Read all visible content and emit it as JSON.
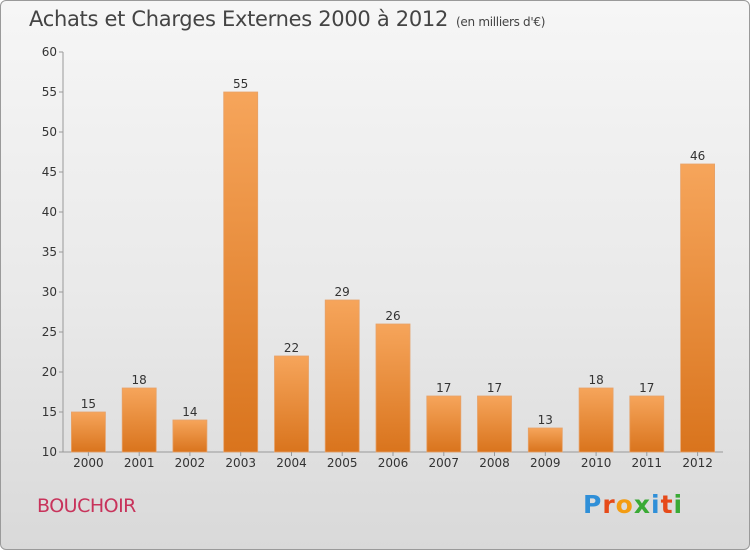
{
  "header": {
    "title": "Achats et Charges Externes 2000 à 2012",
    "subtitle": "(en milliers d'€)"
  },
  "footer": {
    "commune": "BOUCHOIR",
    "logo": [
      "P",
      "r",
      "o",
      "x",
      "i",
      "t",
      "i"
    ],
    "logo_colors": [
      "#2f8fd8",
      "#e64a19",
      "#f39c12",
      "#3aaa35",
      "#2f8fd8",
      "#e64a19",
      "#3aaa35"
    ]
  },
  "chart_data": {
    "type": "bar",
    "categories": [
      "2000",
      "2001",
      "2002",
      "2003",
      "2004",
      "2005",
      "2006",
      "2007",
      "2008",
      "2009",
      "2010",
      "2011",
      "2012"
    ],
    "values": [
      15,
      18,
      14,
      55,
      22,
      29,
      26,
      17,
      17,
      13,
      18,
      17,
      46
    ],
    "ylim": [
      10,
      60
    ],
    "yticks": [
      10,
      15,
      20,
      25,
      30,
      35,
      40,
      45,
      50,
      55,
      60
    ],
    "grid": false,
    "bar_color_top": "#f6a55b",
    "bar_color_bottom": "#d9741d"
  }
}
